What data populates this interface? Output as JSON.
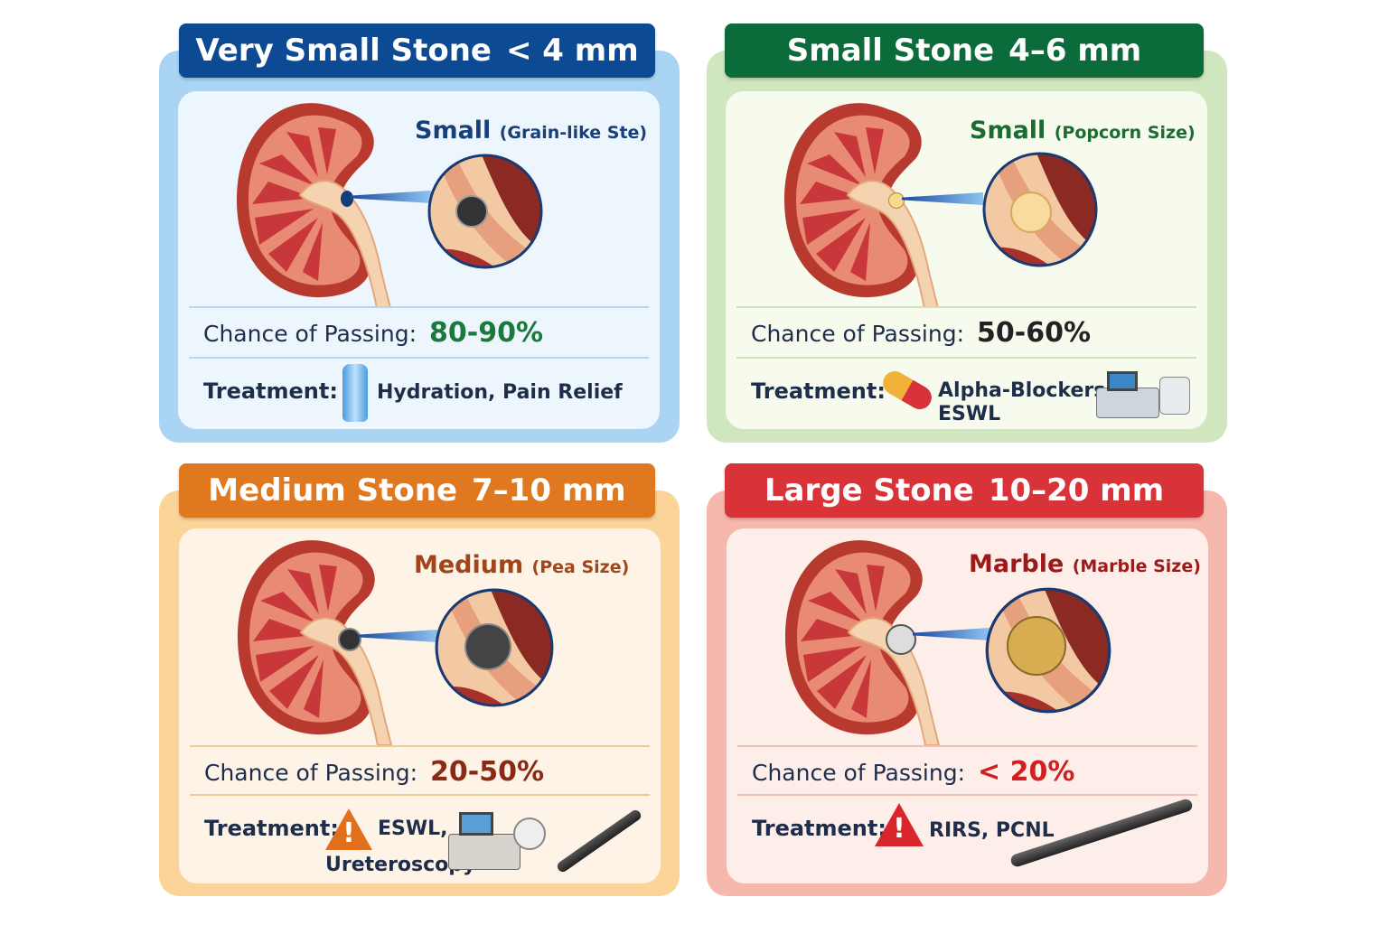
{
  "cards": [
    {
      "title": "Very Small Stone",
      "size": "< 4 mm",
      "stone_label": "Small",
      "stone_desc": "(Grain-like Ste)",
      "chance_label": "Chance of Passing:",
      "chance_value": "80-90%",
      "treatment_label": "Treatment:",
      "treatment": "Hydration, Pain Relief",
      "treatment_icons": [
        "water-bottle-icon"
      ],
      "accent": "#0d4a94"
    },
    {
      "title": "Small Stone",
      "size": "4–6 mm",
      "stone_label": "Small",
      "stone_desc": "(Popcorn Size)",
      "chance_label": "Chance of Passing:",
      "chance_value": "50-60%",
      "treatment_label": "Treatment:",
      "treatment_line1": "Alpha-Blockers,",
      "treatment_line2": "ESWL",
      "treatment_icons": [
        "capsule-icon",
        "lithotripter-machine-icon"
      ],
      "accent": "#0b6b3a"
    },
    {
      "title": "Medium Stone",
      "size": "7–10 mm",
      "stone_label": "Medium",
      "stone_desc": "(Pea Size)",
      "chance_label": "Chance of Passing:",
      "chance_value": "20-50%",
      "treatment_label": "Treatment:",
      "treatment_line1": "ESWL,",
      "treatment_line2": "Ureteroscopy",
      "treatment_icons": [
        "warning-icon",
        "lithotripter-machine-icon",
        "ureteroscope-icon"
      ],
      "accent": "#e0781f"
    },
    {
      "title": "Large Stone",
      "size": "10–20 mm",
      "stone_label": "Marble",
      "stone_desc": "(Marble Size)",
      "chance_label": "Chance of Passing:",
      "chance_value": "< 20%",
      "treatment_label": "Treatment:",
      "treatment": "RIRS, PCNL",
      "treatment_icons": [
        "warning-icon",
        "nephroscope-icon"
      ],
      "accent": "#d9333a"
    }
  ]
}
